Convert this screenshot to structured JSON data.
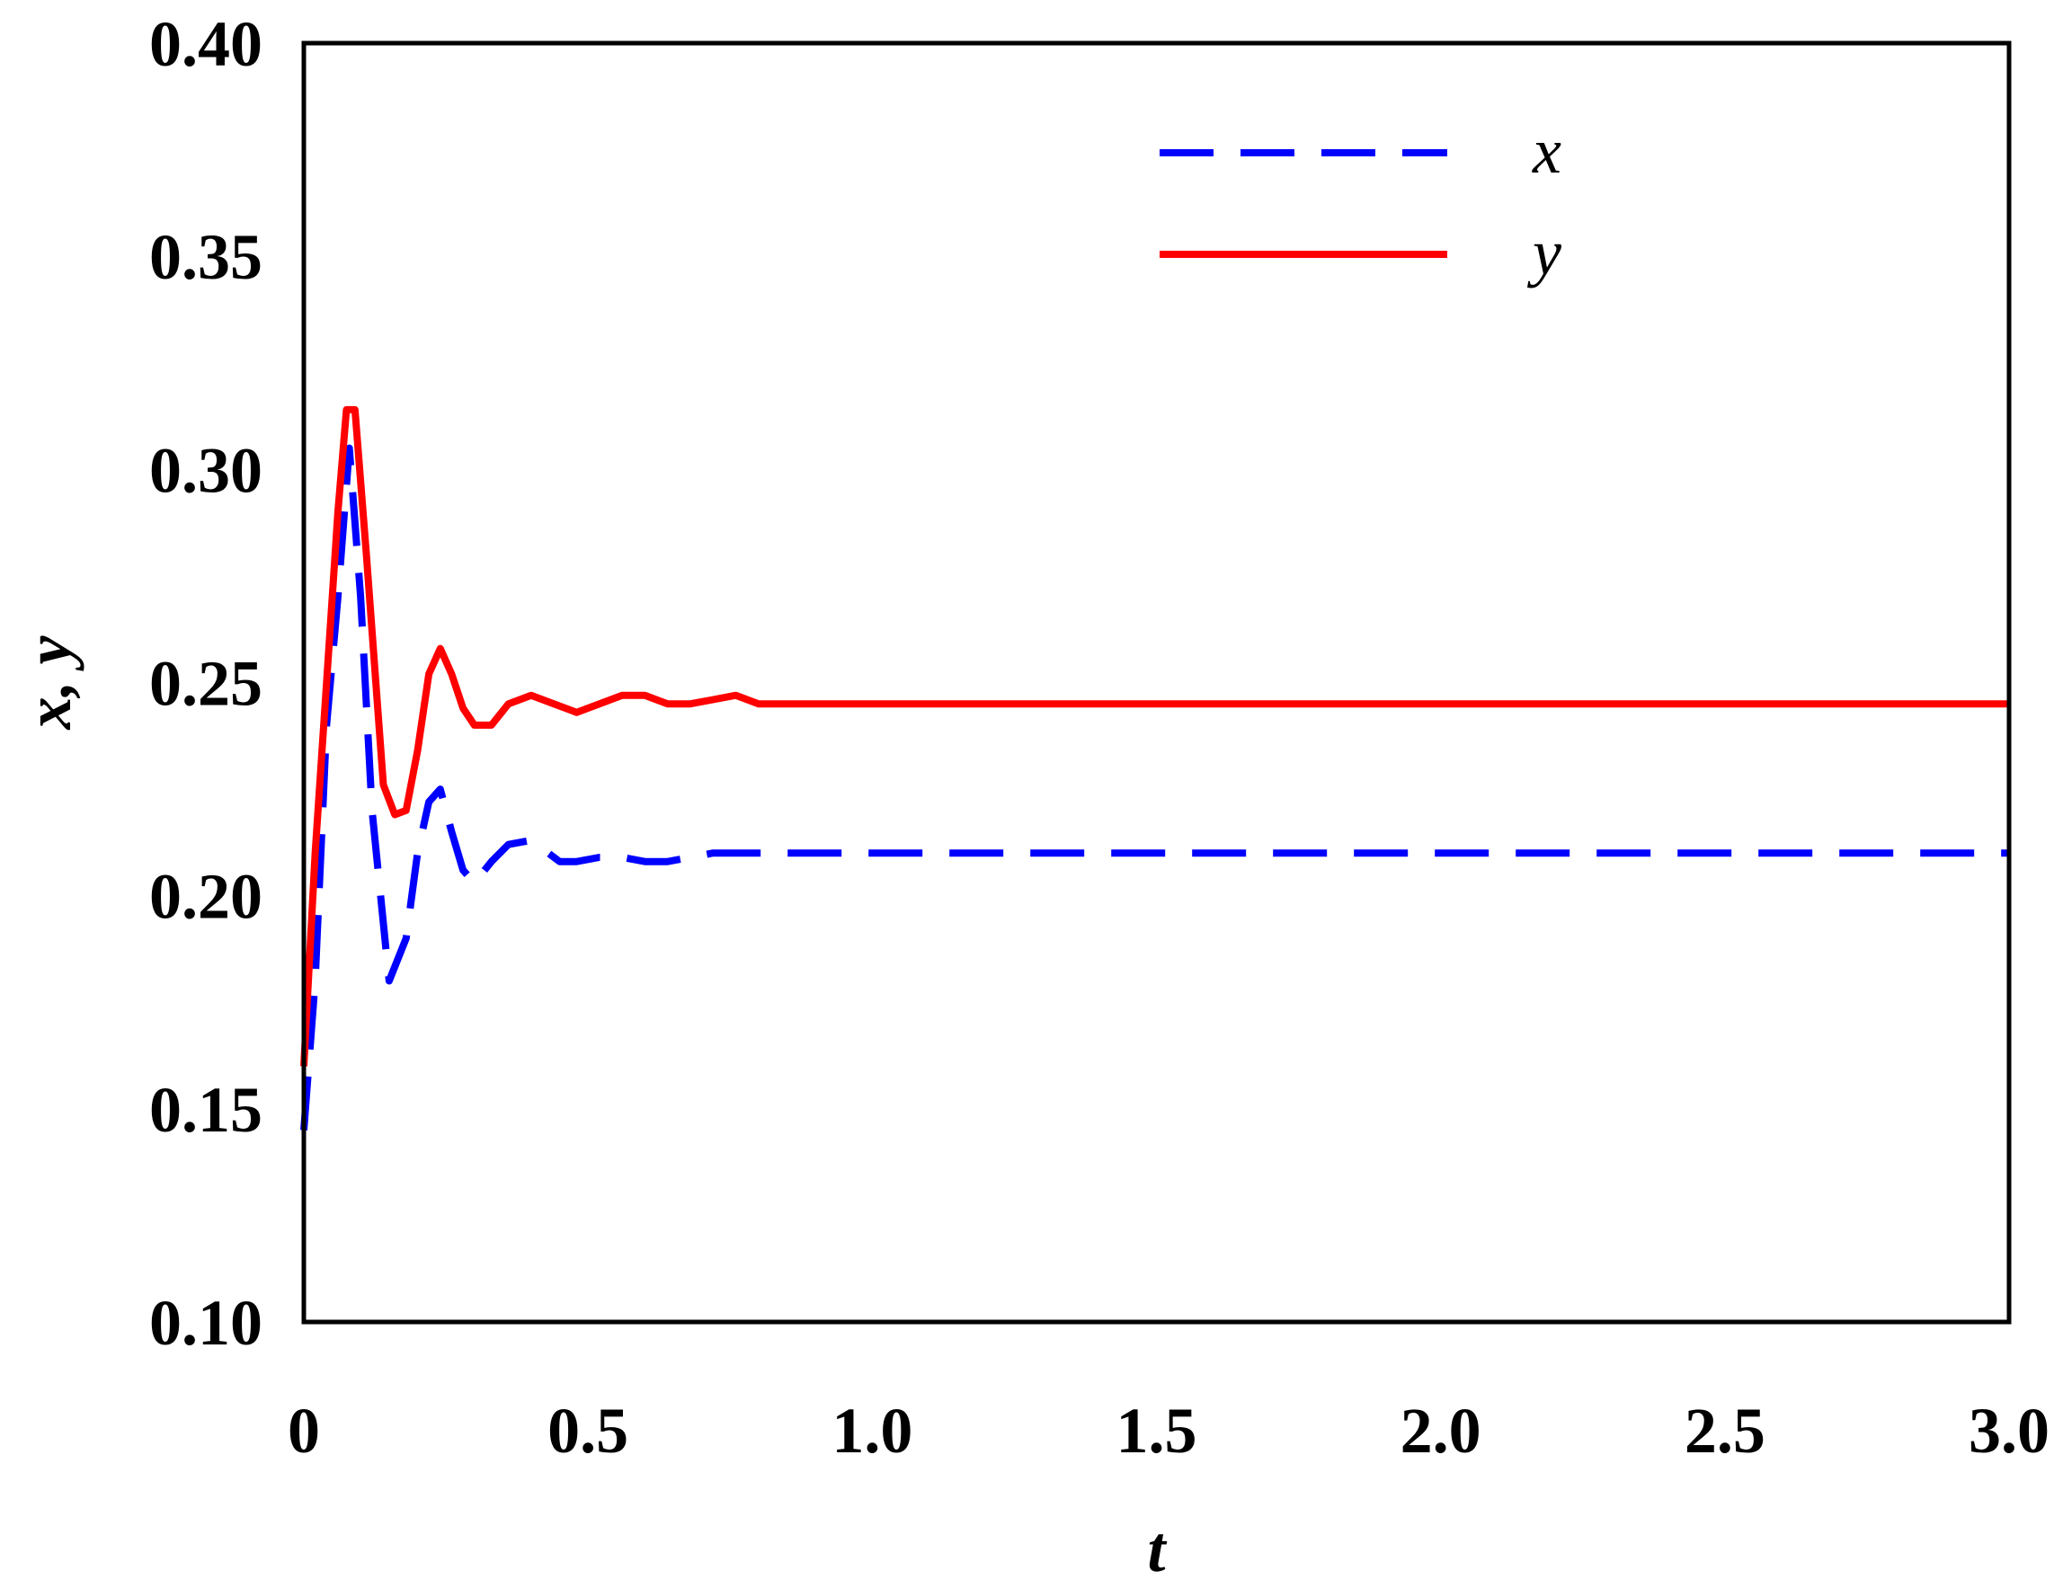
{
  "chart_data": {
    "type": "line",
    "xlabel": "t",
    "ylabel": "x, y",
    "xlim": [
      0,
      3.0
    ],
    "ylim": [
      0.1,
      0.4
    ],
    "grid": false,
    "legend_position": "top-right",
    "xticks": [
      "0",
      "0.5",
      "1.0",
      "1.5",
      "2.0",
      "2.5",
      "3.0"
    ],
    "yticks": [
      "0.10",
      "0.15",
      "0.20",
      "0.25",
      "0.30",
      "0.35",
      "0.40"
    ],
    "series": [
      {
        "name": "x",
        "color": "#0000ff",
        "style": "dashed",
        "x": [
          0,
          0.02,
          0.04,
          0.06,
          0.08,
          0.1,
          0.12,
          0.15,
          0.18,
          0.2,
          0.22,
          0.24,
          0.26,
          0.28,
          0.3,
          0.33,
          0.36,
          0.4,
          0.43,
          0.45,
          0.48,
          0.52,
          0.56,
          0.6,
          0.64,
          0.68,
          0.72,
          0.76,
          0.8,
          1.0,
          1.5,
          2.0,
          2.5,
          3.0
        ],
        "y": [
          0.145,
          0.18,
          0.24,
          0.27,
          0.305,
          0.27,
          0.22,
          0.18,
          0.19,
          0.21,
          0.222,
          0.225,
          0.215,
          0.206,
          0.203,
          0.208,
          0.212,
          0.213,
          0.21,
          0.208,
          0.208,
          0.209,
          0.209,
          0.208,
          0.208,
          0.209,
          0.21,
          0.21,
          0.21,
          0.21,
          0.21,
          0.21,
          0.21,
          0.21
        ]
      },
      {
        "name": "y",
        "color": "#ff0000",
        "style": "solid",
        "x": [
          0,
          0.02,
          0.04,
          0.06,
          0.075,
          0.09,
          0.11,
          0.14,
          0.16,
          0.18,
          0.2,
          0.22,
          0.24,
          0.26,
          0.28,
          0.3,
          0.33,
          0.36,
          0.4,
          0.44,
          0.48,
          0.52,
          0.56,
          0.6,
          0.64,
          0.68,
          0.72,
          0.76,
          0.8,
          1.0,
          1.5,
          2.0,
          2.5,
          3.0
        ],
        "y": [
          0.16,
          0.21,
          0.25,
          0.29,
          0.314,
          0.314,
          0.28,
          0.226,
          0.219,
          0.22,
          0.234,
          0.252,
          0.258,
          0.252,
          0.244,
          0.24,
          0.24,
          0.245,
          0.247,
          0.245,
          0.243,
          0.245,
          0.247,
          0.247,
          0.245,
          0.245,
          0.246,
          0.247,
          0.245,
          0.245,
          0.245,
          0.245,
          0.245,
          0.245
        ]
      }
    ]
  }
}
